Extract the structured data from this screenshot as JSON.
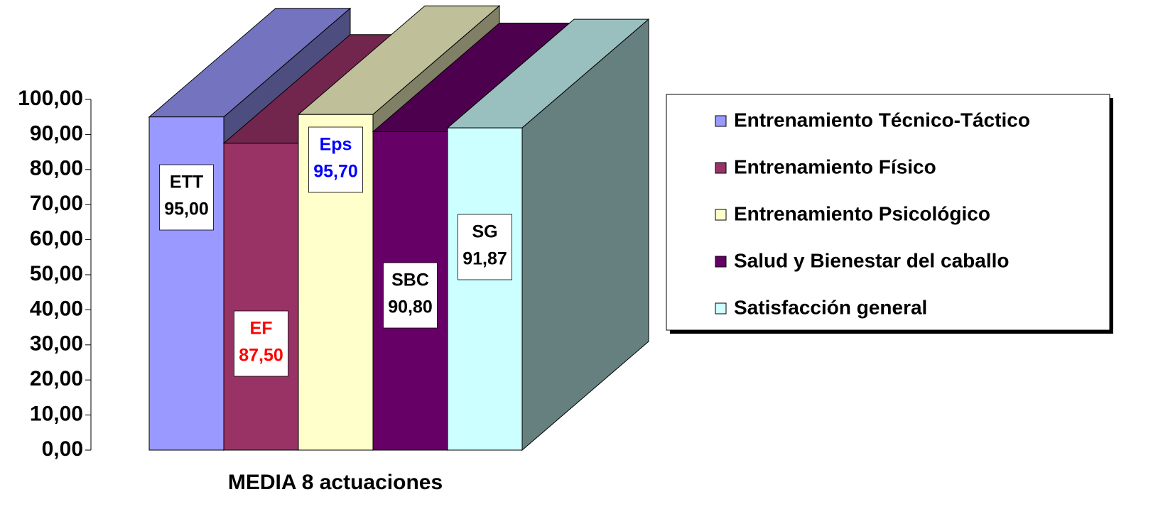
{
  "chart_data": {
    "type": "bar3d",
    "categories": [
      "MEDIA 8 actuaciones"
    ],
    "ylim": [
      0,
      100
    ],
    "yticks": [
      {
        "value": 0,
        "label": "0,00"
      },
      {
        "value": 10,
        "label": "10,00"
      },
      {
        "value": 20,
        "label": "20,00"
      },
      {
        "value": 30,
        "label": "30,00"
      },
      {
        "value": 40,
        "label": "40,00"
      },
      {
        "value": 50,
        "label": "50,00"
      },
      {
        "value": 60,
        "label": "60,00"
      },
      {
        "value": 70,
        "label": "70,00"
      },
      {
        "value": 80,
        "label": "80,00"
      },
      {
        "value": 90,
        "label": "90,00"
      },
      {
        "value": 100,
        "label": "100,00"
      }
    ],
    "legend": "right",
    "series": [
      {
        "name": "Entrenamiento Técnico-Táctico",
        "short_name": "ETT",
        "color": "#9999ff",
        "label_color": "#000000",
        "values": [
          95
        ],
        "value_labels": [
          "95,00"
        ]
      },
      {
        "name": "Entrenamiento Físico",
        "short_name": "EF",
        "color": "#993366",
        "label_color": "#ff0000",
        "values": [
          87.5
        ],
        "value_labels": [
          "87,50"
        ]
      },
      {
        "name": "Entrenamiento Psicológico",
        "short_name": "Eps",
        "color": "#ffffcc",
        "label_color": "#0000ff",
        "values": [
          95.7
        ],
        "value_labels": [
          "95,70"
        ]
      },
      {
        "name": "Salud y Bienestar del caballo",
        "short_name": "SBC",
        "color": "#660066",
        "label_color": "#000000",
        "values": [
          90.8
        ],
        "value_labels": [
          "90,80"
        ]
      },
      {
        "name": "Satisfacción general",
        "short_name": "SG",
        "color": "#ccffff",
        "label_color": "#000000",
        "values": [
          91.87
        ],
        "value_labels": [
          "91,87"
        ]
      }
    ]
  }
}
